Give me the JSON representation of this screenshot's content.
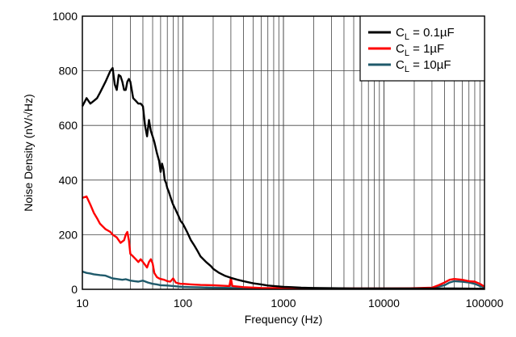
{
  "chart_data": {
    "type": "line",
    "title": "",
    "xlabel": "Frequency (Hz)",
    "ylabel": "Noise Density (nV/√Hz)",
    "x_scale": "log",
    "xlim": [
      10,
      100000
    ],
    "ylim": [
      0,
      1000
    ],
    "grid": true,
    "legend_position": "top-right",
    "x_ticks": [
      10,
      100,
      1000,
      10000,
      100000
    ],
    "x_tick_labels": [
      "10",
      "100",
      "1000",
      "10000",
      "100000"
    ],
    "y_ticks": [
      0,
      200,
      400,
      600,
      800,
      1000
    ],
    "y_tick_labels": [
      "0",
      "200",
      "400",
      "600",
      "800",
      "1000"
    ],
    "series": [
      {
        "name": "C<sub>L</sub> = 0.1µF",
        "legend_main": "C",
        "legend_sub": "L",
        "legend_rest": " = 0.1µF",
        "color": "#000000",
        "x": [
          10,
          11,
          12,
          13,
          14,
          15,
          17,
          19,
          20,
          21,
          22,
          23,
          24,
          25,
          26,
          27,
          28,
          29,
          30,
          32,
          34,
          36,
          38,
          40,
          42,
          44,
          46,
          48,
          50,
          52,
          55,
          58,
          60,
          62,
          64,
          66,
          68,
          70,
          72,
          75,
          78,
          80,
          85,
          90,
          95,
          100,
          110,
          120,
          130,
          140,
          150,
          170,
          190,
          200,
          230,
          260,
          300,
          350,
          400,
          500,
          600,
          700,
          800,
          1000,
          1200,
          1500,
          2000,
          3000,
          5000,
          10000,
          20000,
          50000,
          100000
        ],
        "y": [
          670,
          700,
          680,
          690,
          700,
          720,
          760,
          800,
          810,
          750,
          730,
          785,
          780,
          760,
          730,
          730,
          760,
          770,
          760,
          700,
          690,
          680,
          680,
          670,
          600,
          560,
          620,
          580,
          560,
          540,
          500,
          470,
          430,
          460,
          440,
          400,
          390,
          370,
          360,
          340,
          320,
          310,
          290,
          270,
          250,
          240,
          210,
          180,
          160,
          140,
          120,
          100,
          85,
          75,
          60,
          50,
          42,
          35,
          30,
          22,
          18,
          14,
          12,
          9,
          8,
          6,
          5,
          4,
          3,
          3,
          3,
          3,
          2
        ]
      },
      {
        "name": "C<sub>L</sub> = 1µF",
        "legend_main": "C",
        "legend_sub": "L",
        "legend_rest": " = 1µF",
        "color": "#ff0000",
        "x": [
          10,
          11,
          12,
          13,
          14,
          15,
          17,
          19,
          20,
          22,
          24,
          26,
          27,
          28,
          29,
          30,
          32,
          34,
          36,
          38,
          40,
          42,
          44,
          46,
          48,
          50,
          52,
          55,
          58,
          60,
          65,
          70,
          75,
          80,
          85,
          90,
          95,
          100,
          120,
          150,
          200,
          250,
          290,
          300,
          310,
          350,
          400,
          600,
          1000,
          2000,
          5000,
          10000,
          20000,
          30000,
          35000,
          40000,
          45000,
          50000,
          60000,
          70000,
          80000,
          90000,
          100000
        ],
        "y": [
          335,
          340,
          310,
          280,
          260,
          240,
          220,
          210,
          200,
          190,
          170,
          180,
          200,
          210,
          180,
          130,
          120,
          110,
          100,
          110,
          100,
          90,
          80,
          100,
          110,
          95,
          60,
          45,
          40,
          38,
          35,
          30,
          28,
          40,
          25,
          22,
          20,
          20,
          18,
          16,
          15,
          13,
          12,
          40,
          12,
          10,
          8,
          5,
          4,
          3,
          3,
          3,
          4,
          6,
          15,
          25,
          35,
          38,
          35,
          30,
          28,
          20,
          10
        ]
      },
      {
        "name": "C<sub>L</sub> = 10µF",
        "legend_main": "C",
        "legend_sub": "L",
        "legend_rest": " = 10µF",
        "color": "#1f5a6b",
        "x": [
          10,
          11,
          12,
          13,
          15,
          17,
          20,
          22,
          25,
          27,
          30,
          33,
          36,
          40,
          45,
          50,
          55,
          60,
          70,
          80,
          90,
          100,
          120,
          150,
          200,
          300,
          500,
          1000,
          2000,
          5000,
          10000,
          20000,
          30000,
          40000,
          45000,
          50000,
          60000,
          70000,
          80000,
          90000,
          100000
        ],
        "y": [
          65,
          60,
          58,
          55,
          52,
          50,
          40,
          38,
          35,
          37,
          32,
          30,
          28,
          32,
          25,
          20,
          18,
          15,
          14,
          12,
          10,
          9,
          8,
          7,
          6,
          5,
          4,
          3,
          3,
          3,
          3,
          3,
          5,
          15,
          25,
          30,
          28,
          25,
          20,
          12,
          8
        ]
      }
    ]
  }
}
